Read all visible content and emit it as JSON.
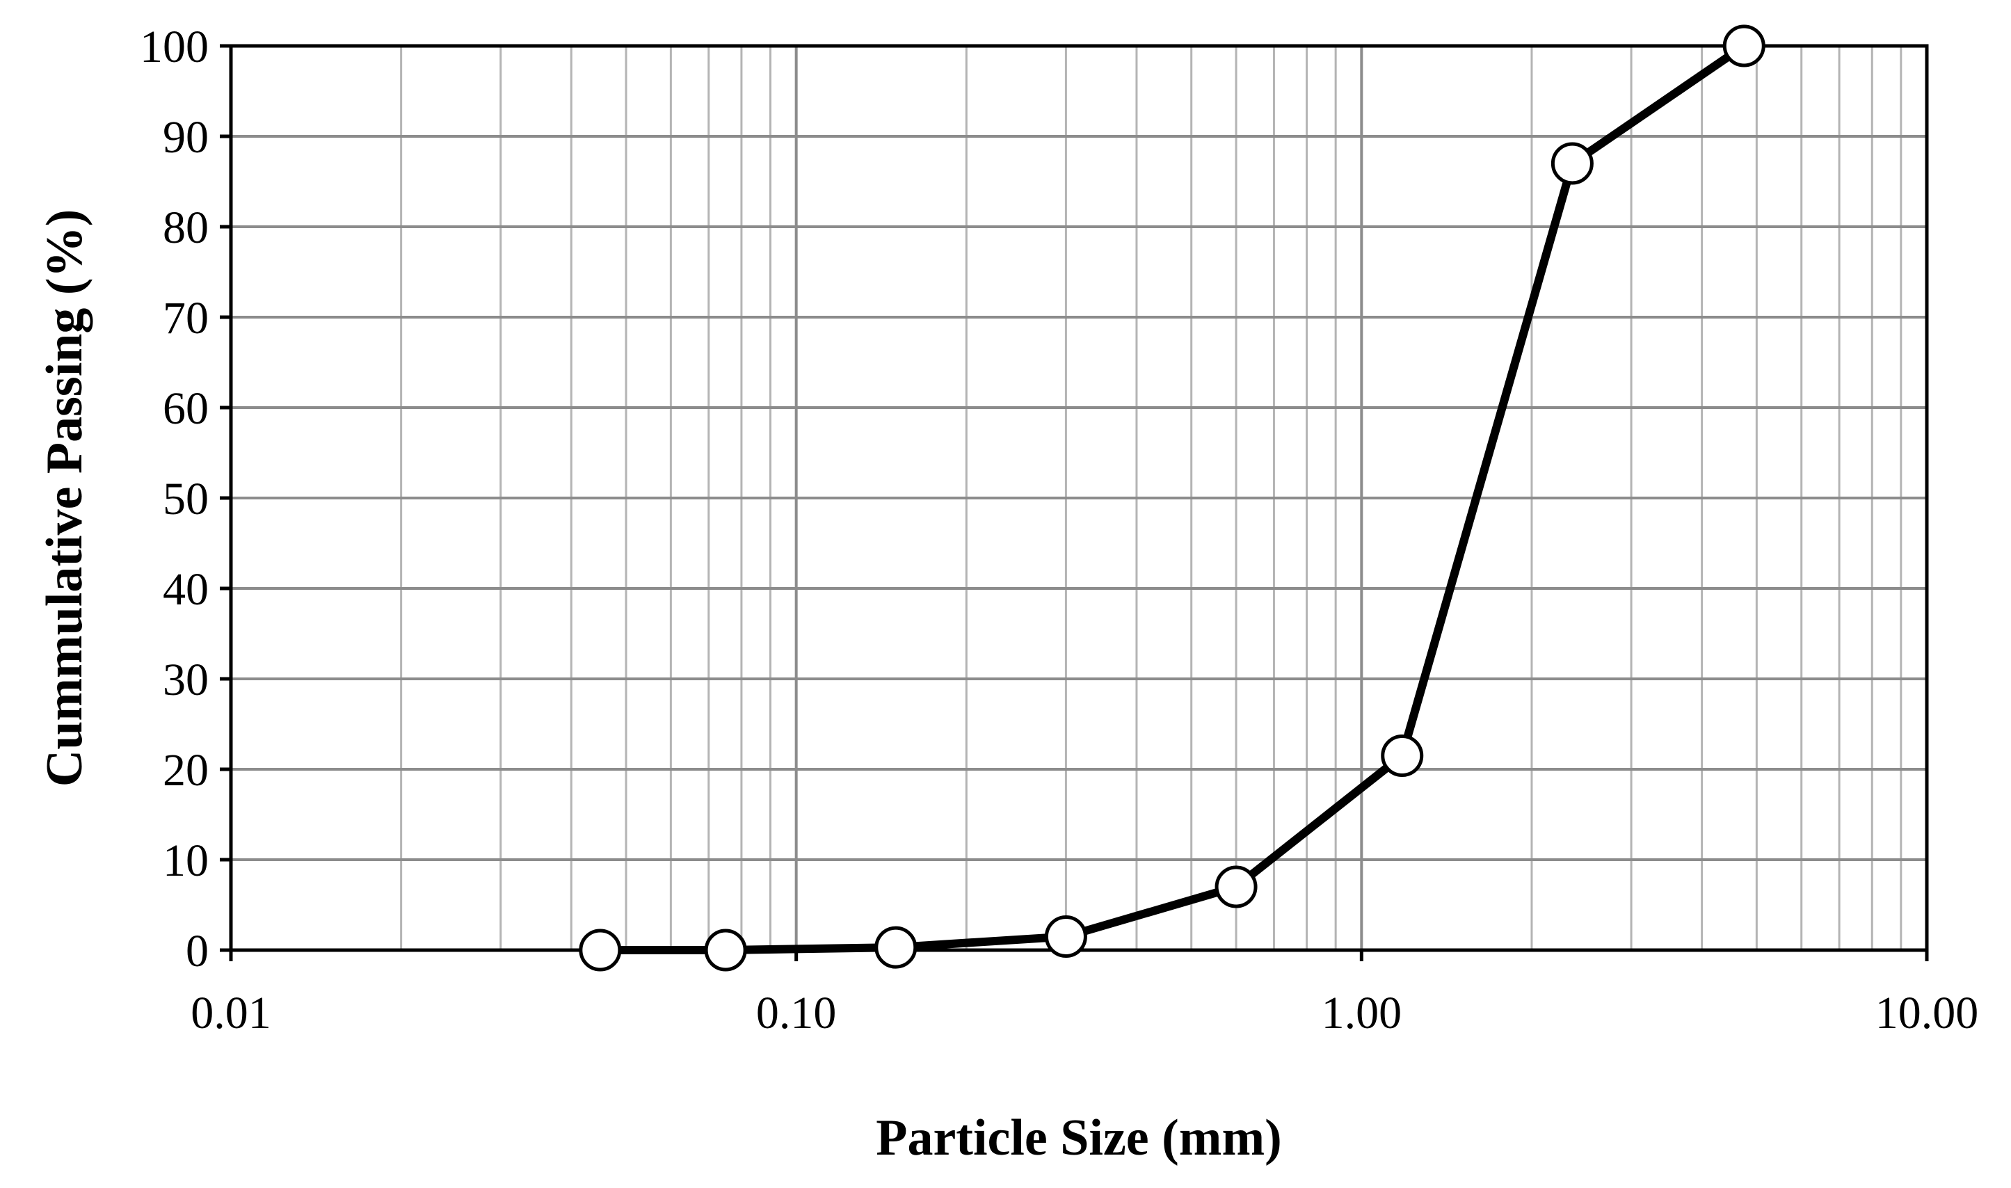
{
  "chart_data": {
    "type": "line",
    "title": "",
    "xlabel": "Particle Size (mm)",
    "ylabel": "Cummulative Passing (%)",
    "x_scale": "log",
    "xlim": [
      0.01,
      10.0
    ],
    "ylim": [
      0,
      100
    ],
    "x_ticks": [
      0.01,
      0.1,
      1.0,
      10.0
    ],
    "x_tick_labels": [
      "0.01",
      "0.10",
      "1.00",
      "10.00"
    ],
    "y_ticks": [
      0,
      10,
      20,
      30,
      40,
      50,
      60,
      70,
      80,
      90,
      100
    ],
    "y_tick_labels": [
      "0",
      "10",
      "20",
      "30",
      "40",
      "50",
      "60",
      "70",
      "80",
      "90",
      "100"
    ],
    "grid": true,
    "legend": "none",
    "series": [
      {
        "name": "",
        "x": [
          0.045,
          0.075,
          0.15,
          0.3,
          0.6,
          1.18,
          2.36,
          4.75
        ],
        "y": [
          0,
          0,
          0.3,
          1.5,
          7.0,
          21.5,
          87.0,
          100.0
        ],
        "color": "#000000",
        "marker": "circle-open"
      }
    ]
  }
}
